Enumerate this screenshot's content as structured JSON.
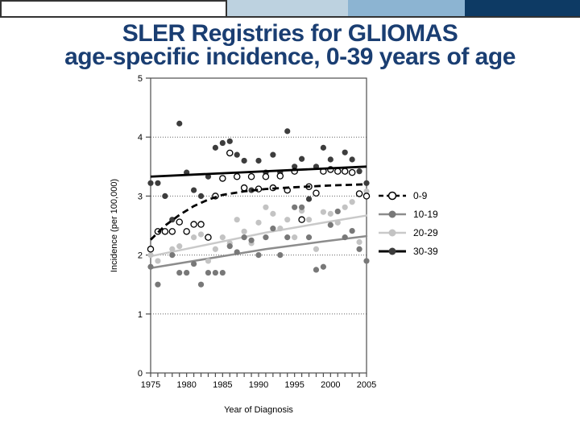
{
  "slide": {
    "title_line1": "SLER Registries for GLIOMAS",
    "title_line2": "age-specific incidence, 0-39 years of age",
    "title_color": "#1a3e72",
    "header_bar": {
      "segments": [
        {
          "name": "white-box",
          "color": "#ffffff"
        },
        {
          "name": "light-blue",
          "color": "#bdd2e0"
        },
        {
          "name": "medium-blue",
          "color": "#8cb4d2"
        },
        {
          "name": "navy",
          "color": "#0d3a64"
        }
      ],
      "line_color": "#333333"
    }
  },
  "chart_data": {
    "type": "scatter",
    "title": "",
    "xlabel": "Year of Diagnosis",
    "ylabel": "Incidence (per 100,000)",
    "xlim": [
      1975,
      2005
    ],
    "ylim": [
      0,
      5
    ],
    "x_ticks_labeled": [
      1975,
      1980,
      1985,
      1990,
      1995,
      2000,
      2005
    ],
    "x_minor_tick_interval": 1,
    "y_ticks": [
      0,
      1,
      2,
      3,
      4,
      5
    ],
    "grid": "horizontal-dotted",
    "grid_color": "#666666",
    "axis_color": "#4d4d4d",
    "legend_position": "right-middle",
    "x": [
      1975,
      1976,
      1977,
      1978,
      1979,
      1980,
      1981,
      1982,
      1983,
      1984,
      1985,
      1986,
      1987,
      1988,
      1989,
      1990,
      1991,
      1992,
      1993,
      1994,
      1995,
      1996,
      1997,
      1998,
      1999,
      2000,
      2001,
      2002,
      2003,
      2004,
      2005
    ],
    "series": [
      {
        "name": "0-9",
        "marker": "open-circle",
        "marker_fill": "#ffffff",
        "marker_stroke": "#000000",
        "line_color": "#000000",
        "line_style": "dashed",
        "values": [
          2.1,
          2.4,
          2.4,
          2.4,
          2.56,
          2.4,
          2.52,
          2.52,
          2.3,
          3.0,
          3.3,
          3.73,
          3.33,
          3.14,
          3.33,
          3.12,
          3.33,
          3.14,
          3.34,
          3.1,
          3.42,
          2.6,
          3.16,
          3.05,
          3.42,
          3.45,
          3.42,
          3.42,
          3.4,
          3.04,
          3.0
        ],
        "trend": [
          [
            1975,
            2.26
          ],
          [
            1977,
            2.5
          ],
          [
            1979,
            2.68
          ],
          [
            1981,
            2.83
          ],
          [
            1983,
            2.94
          ],
          [
            1985,
            3.02
          ],
          [
            1988,
            3.08
          ],
          [
            1991,
            3.12
          ],
          [
            1995,
            3.15
          ],
          [
            2000,
            3.18
          ],
          [
            2005,
            3.2
          ]
        ]
      },
      {
        "name": "10-19",
        "marker": "filled-circle",
        "marker_fill": "#787878",
        "marker_stroke": "none",
        "line_color": "#8c8c8c",
        "line_style": "solid",
        "values": [
          1.8,
          1.5,
          2.4,
          2.0,
          1.7,
          1.7,
          1.85,
          1.5,
          1.7,
          1.7,
          1.7,
          2.15,
          2.05,
          2.3,
          2.25,
          2.0,
          2.3,
          2.45,
          2.0,
          2.3,
          2.81,
          2.81,
          2.3,
          1.75,
          1.8,
          2.51,
          2.74,
          2.3,
          2.41,
          2.1,
          1.9
        ],
        "trend": [
          [
            1975,
            1.78
          ],
          [
            1983,
            1.94
          ],
          [
            1991,
            2.1
          ],
          [
            1999,
            2.23
          ],
          [
            2005,
            2.32
          ]
        ]
      },
      {
        "name": "20-29",
        "marker": "filled-circle",
        "marker_fill": "#c3c3c3",
        "marker_stroke": "none",
        "line_color": "#c9c9c9",
        "line_style": "solid",
        "values": [
          2.0,
          1.9,
          2.4,
          2.1,
          2.15,
          1.7,
          2.3,
          2.35,
          1.9,
          2.1,
          2.3,
          2.2,
          2.6,
          2.4,
          2.2,
          2.55,
          2.81,
          2.7,
          2.45,
          2.6,
          2.3,
          2.75,
          2.6,
          2.1,
          2.73,
          2.7,
          2.55,
          2.81,
          2.9,
          2.22,
          3.08
        ],
        "trend": [
          [
            1975,
            1.98
          ],
          [
            1983,
            2.18
          ],
          [
            1991,
            2.38
          ],
          [
            1999,
            2.55
          ],
          [
            2005,
            2.67
          ]
        ]
      },
      {
        "name": "30-39",
        "marker": "filled-circle",
        "marker_fill": "#3d3d3d",
        "marker_stroke": "none",
        "line_color": "#000000",
        "line_style": "solid-thick",
        "values": [
          3.22,
          3.22,
          3.0,
          2.6,
          4.23,
          3.4,
          3.1,
          3.0,
          3.33,
          3.82,
          3.9,
          3.93,
          3.7,
          3.6,
          3.1,
          3.6,
          3.4,
          3.7,
          3.4,
          4.1,
          3.5,
          3.63,
          2.95,
          3.5,
          3.82,
          3.62,
          3.42,
          3.74,
          3.62,
          3.42,
          3.22
        ],
        "trend": [
          [
            1975,
            3.33
          ],
          [
            2005,
            3.5
          ]
        ]
      }
    ]
  }
}
